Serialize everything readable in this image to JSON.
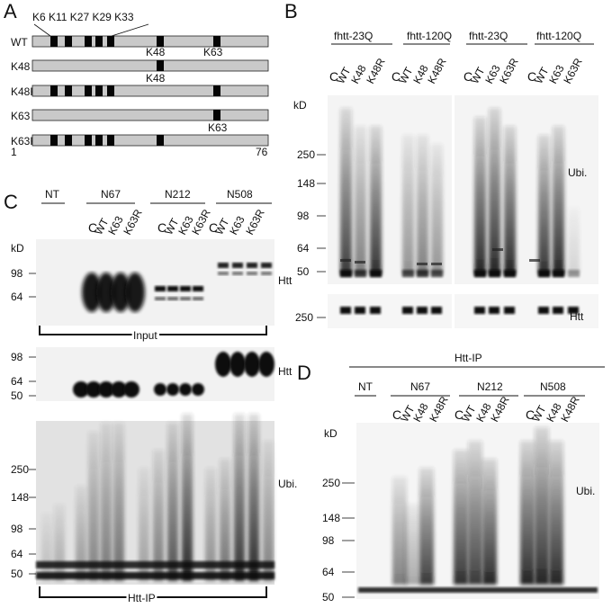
{
  "panels": {
    "A": {
      "letter": "A",
      "top_sites": "K6 K11 K27 K29 K33",
      "rows": [
        {
          "label": "WT",
          "boxes": [
            "K6",
            "K11",
            "K27",
            "K29",
            "K33",
            "K48",
            "K63"
          ]
        },
        {
          "label": "K48",
          "boxes": [
            "K48"
          ]
        },
        {
          "label": "K48R",
          "boxes": [
            "K6",
            "K11",
            "K27",
            "K29",
            "K33",
            "K63"
          ]
        },
        {
          "label": "K63",
          "boxes": [
            "K63"
          ]
        },
        {
          "label": "K63R",
          "boxes": [
            "K6",
            "K11",
            "K27",
            "K29",
            "K33",
            "K48"
          ]
        }
      ],
      "between_labels": [
        "K48",
        "K63",
        "K48",
        "K63"
      ],
      "axis_start": "1",
      "axis_end": "76"
    },
    "B": {
      "letter": "B",
      "groups": [
        "fhtt-23Q",
        "fhtt-120Q",
        "fhtt-23Q",
        "fhtt-120Q"
      ],
      "lanes_left": [
        "C",
        "WT",
        "K48",
        "K48R",
        "C",
        "WT",
        "K48",
        "K48R"
      ],
      "lanes_right": [
        "C",
        "WT",
        "K63",
        "K63R",
        "C",
        "WT",
        "K63",
        "K63R"
      ],
      "kd": "kD",
      "markers": [
        "250",
        "148",
        "98",
        "64",
        "50"
      ],
      "lower_marker": "250",
      "blot_labels": [
        "Ubi.",
        "Htt"
      ]
    },
    "C": {
      "letter": "C",
      "groups": [
        "NT",
        "N67",
        "N212",
        "N508"
      ],
      "lanes": [
        "C",
        "WT",
        "K63",
        "K63R",
        "C",
        "WT",
        "K63",
        "K63R",
        "C",
        "WT",
        "K63",
        "K63R"
      ],
      "kd": "kD",
      "markers_input": [
        "98",
        "64"
      ],
      "markers_mid": [
        "98",
        "64",
        "50"
      ],
      "markers_ubi": [
        "250",
        "148",
        "98",
        "64",
        "50"
      ],
      "bracket_input": "Input",
      "bracket_ip": "Htt-IP",
      "blot_labels": [
        "Htt",
        "Htt",
        "Ubi."
      ]
    },
    "D": {
      "letter": "D",
      "header": "Htt-IP",
      "groups": [
        "NT",
        "N67",
        "N212",
        "N508"
      ],
      "lanes": [
        "C",
        "WT",
        "K48",
        "K48R",
        "C",
        "WT",
        "K48",
        "K48R",
        "C",
        "WT",
        "K48",
        "K48R"
      ],
      "kd": "kD",
      "markers": [
        "250",
        "148",
        "98",
        "64",
        "50"
      ],
      "blot_label": "Ubi."
    }
  }
}
